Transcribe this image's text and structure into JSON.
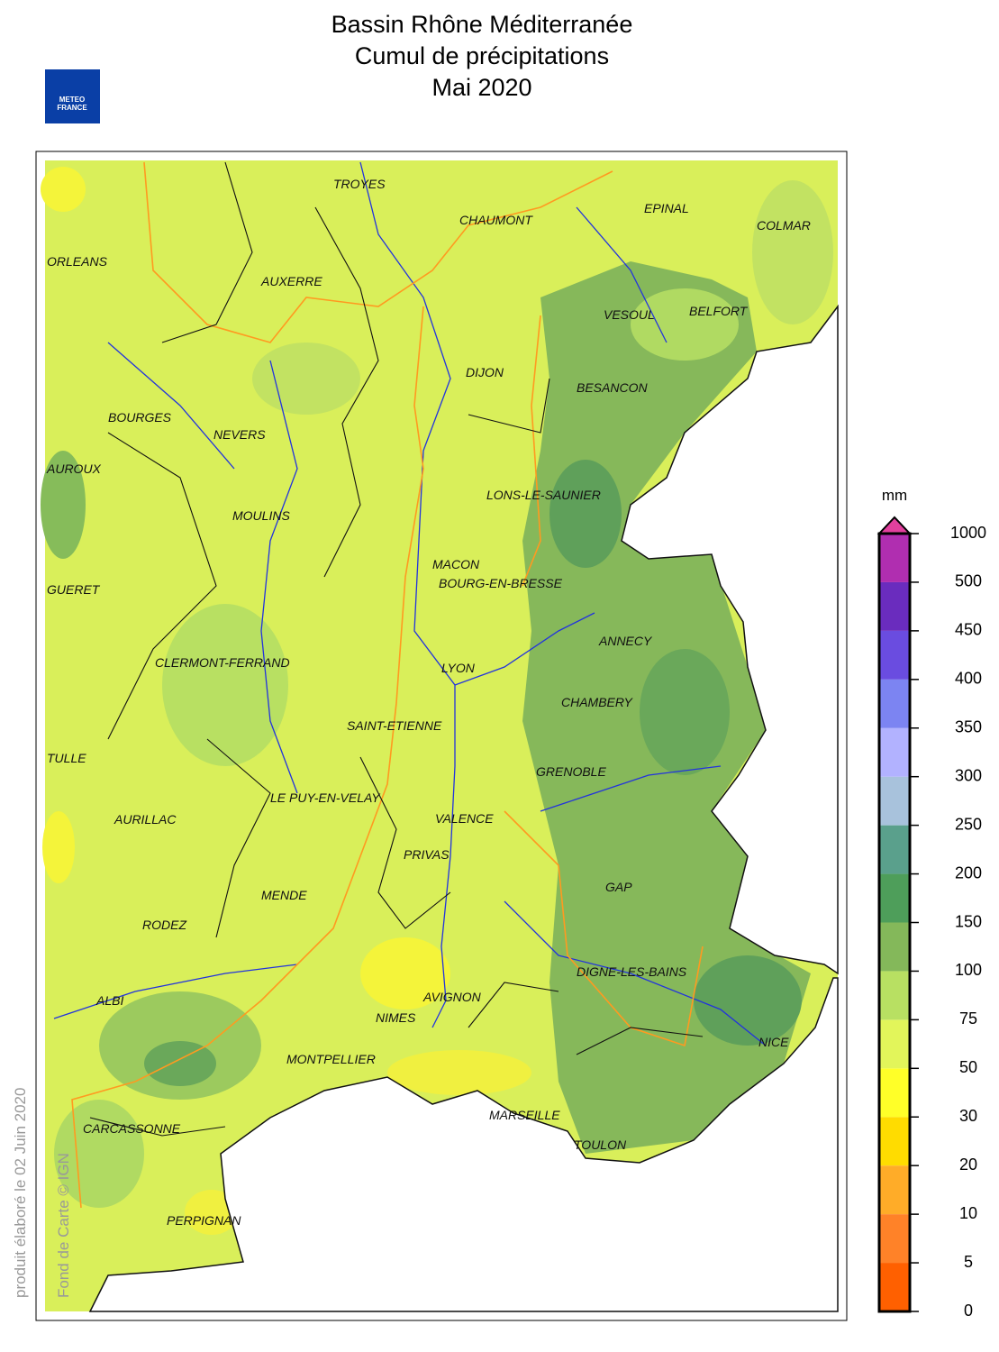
{
  "header": {
    "title_lines": [
      "Bassin Rhône Méditerranée",
      "Cumul de précipitations",
      "Mai 2020"
    ],
    "logo": [
      "METEO",
      "FRANCE"
    ]
  },
  "map": {
    "cities": [
      "TROYES",
      "CHAUMONT",
      "EPINAL",
      "COLMAR",
      "ORLEANS",
      "AUXERRE",
      "VESOUL",
      "BELFORT",
      "DIJON",
      "BESANCON",
      "BOURGES",
      "NEVERS",
      "AUROUX",
      "LONS-LE-SAUNIER",
      "MOULINS",
      "MACON",
      "BOURG-EN-BRESSE",
      "GUERET",
      "ANNECY",
      "CLERMONT-FERRAND",
      "LYON",
      "CHAMBERY",
      "SAINT-ETIENNE",
      "TULLE",
      "GRENOBLE",
      "LE PUY-EN-VELAY",
      "AURILLAC",
      "VALENCE",
      "PRIVAS",
      "GAP",
      "MENDE",
      "RODEZ",
      "DIGNE-LES-BAINS",
      "ALBI",
      "AVIGNON",
      "NIMES",
      "NICE",
      "MONTPELLIER",
      "MARSEILLE",
      "CARCASSONNE",
      "TOULON",
      "PERPIGNAN"
    ]
  },
  "legend": {
    "unit": "mm",
    "ticks": [
      0,
      5,
      10,
      20,
      30,
      50,
      75,
      100,
      150,
      200,
      250,
      300,
      350,
      400,
      450,
      500,
      1000
    ],
    "colors": [
      "#ff6000",
      "#ff8228",
      "#ffac28",
      "#ffdc00",
      "#ffff28",
      "#e2f55a",
      "#b8e062",
      "#84b85a",
      "#4e9e5a",
      "#5aa08c",
      "#a8c2dc",
      "#b2b2ff",
      "#7c84f2",
      "#6a4ce0",
      "#6a2cbe",
      "#b02eb0"
    ],
    "over_color": "#e2409e"
  },
  "footer": {
    "credit": "produit élaboré le 02 Juin 2020",
    "copyright": "Fond de Carte © IGN"
  }
}
